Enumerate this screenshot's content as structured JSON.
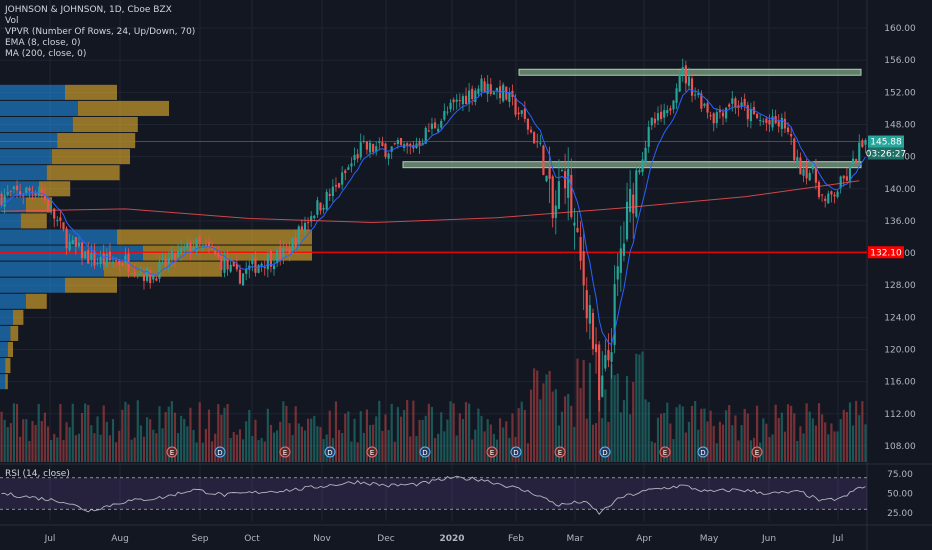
{
  "header": {
    "title": "JOHNSON & JOHNSON, 1D, Cboe BZX",
    "vol": "Vol",
    "vpvr": "VPVR (Number Of Rows, 24, Up/Down, 70)",
    "ema": "EMA (8, close, 0)",
    "ma": "MA (200, close, 0)"
  },
  "rsi_label": "RSI (14, close)",
  "price_tags": {
    "last": "145.88",
    "countdown": "03:26:27",
    "support": "132.10"
  },
  "event_markers": [
    "E",
    "D",
    "E",
    "D",
    "E",
    "D",
    "E",
    "D",
    "E",
    "D",
    "E",
    "D",
    "E"
  ],
  "colors": {
    "background": "#131722",
    "up": "#26a69a",
    "down": "#ef5350",
    "ema": "#2962ff",
    "ma": "#ff5252",
    "zone": "#a5d6a7",
    "support_line": "#ff0000",
    "vp_up": "#2196f3",
    "vp_down": "#fbc02d",
    "rsi_line": "#b2b5be",
    "rsi_band": "#7e57c2"
  },
  "chart_data": {
    "type": "candlestick",
    "title": "JOHNSON & JOHNSON, 1D, Cboe BZX",
    "x_ticks": [
      "Jul",
      "Aug",
      "Sep",
      "Oct",
      "Nov",
      "Dec",
      "2020",
      "Feb",
      "Mar",
      "Apr",
      "May",
      "Jun",
      "Jul"
    ],
    "y_ticks": [
      108.0,
      112.0,
      116.0,
      120.0,
      124.0,
      128.0,
      132.0,
      136.0,
      140.0,
      144.0,
      148.0,
      152.0,
      156.0,
      160.0
    ],
    "ylim": [
      106,
      162
    ],
    "price_anchors": [
      [
        0,
        139
      ],
      [
        12,
        140
      ],
      [
        22,
        133
      ],
      [
        30,
        131
      ],
      [
        40,
        131
      ],
      [
        48,
        129
      ],
      [
        54,
        131
      ],
      [
        62,
        133
      ],
      [
        68,
        132
      ],
      [
        76,
        129
      ],
      [
        84,
        131
      ],
      [
        92,
        132
      ],
      [
        100,
        137
      ],
      [
        108,
        140
      ],
      [
        116,
        145
      ],
      [
        124,
        145
      ],
      [
        132,
        145
      ],
      [
        140,
        148
      ],
      [
        148,
        151
      ],
      [
        155,
        153
      ],
      [
        162,
        152
      ],
      [
        168,
        149
      ],
      [
        174,
        145
      ],
      [
        178,
        136
      ],
      [
        182,
        143
      ],
      [
        186,
        132
      ],
      [
        190,
        125
      ],
      [
        193,
        113
      ],
      [
        196,
        119
      ],
      [
        200,
        132
      ],
      [
        205,
        142
      ],
      [
        210,
        148
      ],
      [
        215,
        149
      ],
      [
        219,
        155
      ],
      [
        224,
        152
      ],
      [
        230,
        149
      ],
      [
        236,
        151
      ],
      [
        242,
        149
      ],
      [
        248,
        148
      ],
      [
        253,
        148
      ],
      [
        257,
        143
      ],
      [
        262,
        142
      ],
      [
        266,
        138
      ],
      [
        270,
        140
      ],
      [
        274,
        142
      ],
      [
        277,
        145
      ]
    ],
    "horizontal_levels": [
      {
        "type": "zone",
        "value": 154.5
      },
      {
        "type": "zone",
        "value": 143.0
      },
      {
        "type": "line",
        "value": 132.1
      }
    ],
    "volume_profile_prices": [
      [
        152,
        0.25,
        0.2
      ],
      [
        150,
        0.3,
        0.35
      ],
      [
        148,
        0.28,
        0.25
      ],
      [
        146,
        0.22,
        0.3
      ],
      [
        144,
        0.2,
        0.3
      ],
      [
        142,
        0.18,
        0.28
      ],
      [
        140,
        0.15,
        0.12
      ],
      [
        138,
        0.1,
        0.1
      ],
      [
        136,
        0.08,
        0.1
      ],
      [
        134,
        0.45,
        0.75
      ],
      [
        132,
        0.55,
        0.65
      ],
      [
        130,
        0.4,
        0.45
      ],
      [
        128,
        0.25,
        0.2
      ],
      [
        126,
        0.1,
        0.08
      ],
      [
        124,
        0.05,
        0.04
      ],
      [
        122,
        0.04,
        0.03
      ],
      [
        120,
        0.03,
        0.02
      ],
      [
        118,
        0.02,
        0.02
      ],
      [
        116,
        0.02,
        0.01
      ]
    ],
    "rsi": {
      "label": "RSI (14, close)",
      "levels": [
        70,
        30
      ],
      "y_ticks": [
        75.0,
        50.0,
        25.0
      ],
      "ylim": [
        15,
        85
      ],
      "anchors": [
        [
          0,
          50
        ],
        [
          20,
          40
        ],
        [
          28,
          28
        ],
        [
          40,
          40
        ],
        [
          52,
          45
        ],
        [
          62,
          55
        ],
        [
          72,
          48
        ],
        [
          84,
          52
        ],
        [
          95,
          55
        ],
        [
          105,
          60
        ],
        [
          115,
          65
        ],
        [
          125,
          60
        ],
        [
          135,
          62
        ],
        [
          145,
          70
        ],
        [
          155,
          68
        ],
        [
          165,
          58
        ],
        [
          172,
          50
        ],
        [
          180,
          35
        ],
        [
          188,
          40
        ],
        [
          193,
          25
        ],
        [
          200,
          45
        ],
        [
          210,
          55
        ],
        [
          220,
          60
        ],
        [
          228,
          52
        ],
        [
          238,
          55
        ],
        [
          248,
          50
        ],
        [
          258,
          52
        ],
        [
          265,
          40
        ],
        [
          272,
          45
        ],
        [
          277,
          58
        ]
      ]
    }
  }
}
